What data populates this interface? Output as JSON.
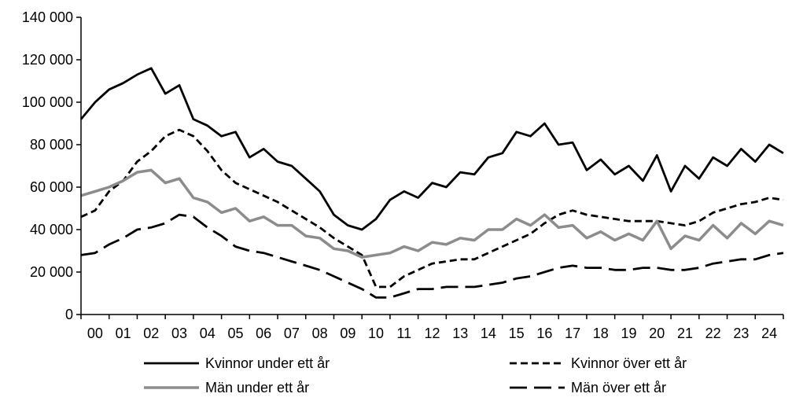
{
  "chart_data": {
    "type": "line",
    "title": "",
    "xlabel": "",
    "ylabel": "",
    "x_tick_labels": [
      "00",
      "01",
      "02",
      "03",
      "04",
      "05",
      "06",
      "07",
      "08",
      "09",
      "10",
      "11",
      "12",
      "13",
      "14",
      "15",
      "16",
      "17",
      "18",
      "19",
      "20",
      "21",
      "22",
      "23",
      "24"
    ],
    "y_tick_labels": [
      "0",
      "20 000",
      "40 000",
      "60 000",
      "80 000",
      "100 000",
      "120 000",
      "140 000"
    ],
    "y_ticks": [
      0,
      20000,
      40000,
      60000,
      80000,
      100000,
      120000,
      140000
    ],
    "ylim": [
      0,
      140000
    ],
    "xlim": [
      2000.0,
      2025.0
    ],
    "grid": false,
    "legend_position": "bottom",
    "series": [
      {
        "name": "Kvinnor under ett år",
        "color": "#000000",
        "style": "solid",
        "x": [
          2000.0,
          2000.5,
          2001.0,
          2001.5,
          2002.0,
          2002.5,
          2003.0,
          2003.5,
          2004.0,
          2004.5,
          2005.0,
          2005.5,
          2006.0,
          2006.5,
          2007.0,
          2007.5,
          2008.0,
          2008.5,
          2009.0,
          2009.5,
          2010.0,
          2010.5,
          2011.0,
          2011.5,
          2012.0,
          2012.5,
          2013.0,
          2013.5,
          2014.0,
          2014.5,
          2015.0,
          2015.5,
          2016.0,
          2016.5,
          2017.0,
          2017.5,
          2018.0,
          2018.5,
          2019.0,
          2019.5,
          2020.0,
          2020.5,
          2021.0,
          2021.5,
          2022.0,
          2022.5,
          2023.0,
          2023.5,
          2024.0,
          2024.5,
          2025.0
        ],
        "values": [
          92000,
          100000,
          106000,
          109000,
          113000,
          116000,
          104000,
          108000,
          92000,
          89000,
          84000,
          86000,
          74000,
          78000,
          72000,
          70000,
          64000,
          58000,
          47000,
          42000,
          40000,
          45000,
          54000,
          58000,
          55000,
          62000,
          60000,
          67000,
          66000,
          74000,
          76000,
          86000,
          84000,
          90000,
          80000,
          81000,
          68000,
          73000,
          66000,
          70000,
          63000,
          75000,
          58000,
          70000,
          64000,
          74000,
          70000,
          78000,
          72000,
          80000,
          76000
        ]
      },
      {
        "name": "Kvinnor över ett år",
        "color": "#000000",
        "style": "dashed",
        "x": [
          2000.0,
          2000.5,
          2001.0,
          2001.5,
          2002.0,
          2002.5,
          2003.0,
          2003.5,
          2004.0,
          2004.5,
          2005.0,
          2005.5,
          2006.0,
          2006.5,
          2007.0,
          2007.5,
          2008.0,
          2008.5,
          2009.0,
          2009.5,
          2010.0,
          2010.5,
          2011.0,
          2011.5,
          2012.0,
          2012.5,
          2013.0,
          2013.5,
          2014.0,
          2014.5,
          2015.0,
          2015.5,
          2016.0,
          2016.5,
          2017.0,
          2017.5,
          2018.0,
          2018.5,
          2019.0,
          2019.5,
          2020.0,
          2020.5,
          2021.0,
          2021.5,
          2022.0,
          2022.5,
          2023.0,
          2023.5,
          2024.0,
          2024.5,
          2025.0
        ],
        "values": [
          46000,
          49000,
          58000,
          63000,
          72000,
          77000,
          84000,
          87000,
          84000,
          77000,
          68000,
          62000,
          59000,
          56000,
          53000,
          49000,
          45000,
          41000,
          36000,
          32000,
          28000,
          13000,
          13000,
          18000,
          21000,
          24000,
          25000,
          26000,
          26000,
          29000,
          32000,
          35000,
          38000,
          43000,
          47000,
          49000,
          47000,
          46000,
          45000,
          44000,
          44000,
          44000,
          43000,
          42000,
          44000,
          48000,
          50000,
          52000,
          53000,
          55000,
          54000
        ]
      },
      {
        "name": "Män under ett år",
        "color": "#8c8c8c",
        "style": "solid",
        "x": [
          2000.0,
          2000.5,
          2001.0,
          2001.5,
          2002.0,
          2002.5,
          2003.0,
          2003.5,
          2004.0,
          2004.5,
          2005.0,
          2005.5,
          2006.0,
          2006.5,
          2007.0,
          2007.5,
          2008.0,
          2008.5,
          2009.0,
          2009.5,
          2010.0,
          2010.5,
          2011.0,
          2011.5,
          2012.0,
          2012.5,
          2013.0,
          2013.5,
          2014.0,
          2014.5,
          2015.0,
          2015.5,
          2016.0,
          2016.5,
          2017.0,
          2017.5,
          2018.0,
          2018.5,
          2019.0,
          2019.5,
          2020.0,
          2020.5,
          2021.0,
          2021.5,
          2022.0,
          2022.5,
          2023.0,
          2023.5,
          2024.0,
          2024.5,
          2025.0
        ],
        "values": [
          56000,
          58000,
          60000,
          63000,
          67000,
          68000,
          62000,
          64000,
          55000,
          53000,
          48000,
          50000,
          44000,
          46000,
          42000,
          42000,
          37000,
          36000,
          31000,
          30000,
          27000,
          28000,
          29000,
          32000,
          30000,
          34000,
          33000,
          36000,
          35000,
          40000,
          40000,
          45000,
          42000,
          47000,
          41000,
          42000,
          36000,
          39000,
          35000,
          38000,
          35000,
          44000,
          31000,
          37000,
          35000,
          42000,
          36000,
          43000,
          38000,
          44000,
          42000
        ]
      },
      {
        "name": "Män över ett år",
        "color": "#000000",
        "style": "longdash",
        "x": [
          2000.0,
          2000.5,
          2001.0,
          2001.5,
          2002.0,
          2002.5,
          2003.0,
          2003.5,
          2004.0,
          2004.5,
          2005.0,
          2005.5,
          2006.0,
          2006.5,
          2007.0,
          2007.5,
          2008.0,
          2008.5,
          2009.0,
          2009.5,
          2010.0,
          2010.5,
          2011.0,
          2011.5,
          2012.0,
          2012.5,
          2013.0,
          2013.5,
          2014.0,
          2014.5,
          2015.0,
          2015.5,
          2016.0,
          2016.5,
          2017.0,
          2017.5,
          2018.0,
          2018.5,
          2019.0,
          2019.5,
          2020.0,
          2020.5,
          2021.0,
          2021.5,
          2022.0,
          2022.5,
          2023.0,
          2023.5,
          2024.0,
          2024.5,
          2025.0
        ],
        "values": [
          28000,
          29000,
          33000,
          36000,
          40000,
          41000,
          43000,
          47000,
          46000,
          41000,
          37000,
          32000,
          30000,
          29000,
          27000,
          25000,
          23000,
          21000,
          18000,
          15000,
          12000,
          8000,
          8000,
          10000,
          12000,
          12000,
          13000,
          13000,
          13000,
          14000,
          15000,
          17000,
          18000,
          20000,
          22000,
          23000,
          22000,
          22000,
          21000,
          21000,
          22000,
          22000,
          21000,
          21000,
          22000,
          24000,
          25000,
          26000,
          26000,
          28000,
          29000
        ]
      }
    ]
  }
}
